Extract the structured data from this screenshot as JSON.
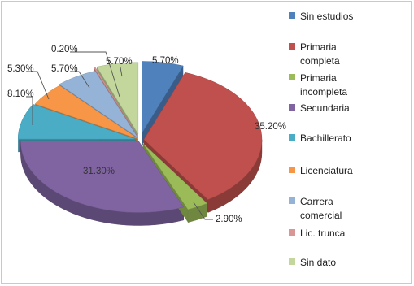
{
  "chart_data": {
    "type": "pie",
    "exploded": true,
    "three_d": true,
    "legend_position": "right",
    "categories": [
      "Sin estudios",
      "Primaria completa",
      "Primaria incompleta",
      "Secundaria",
      "Bachillerato",
      "Licenciatura",
      "Carrera comercial",
      "Lic. trunca",
      "Sin dato"
    ],
    "legend_lines": [
      [
        "Sin estudios"
      ],
      [
        "Primaria",
        "completa"
      ],
      [
        "Primaria",
        "incompleta"
      ],
      [
        "Secundaria"
      ],
      [
        "Bachillerato"
      ],
      [
        "Licenciatura"
      ],
      [
        "Carrera",
        "comercial"
      ],
      [
        "Lic. trunca"
      ],
      [
        "Sin dato"
      ]
    ],
    "values": [
      5.7,
      35.2,
      2.9,
      31.3,
      8.1,
      5.3,
      5.7,
      0.2,
      5.7
    ],
    "data_labels": [
      "5.70%",
      "35.20%",
      "2.90%",
      "31.30%",
      "8.10%",
      "5.30%",
      "5.70%",
      "0.20%",
      "5.70%"
    ],
    "colors": [
      "#4f81bd",
      "#c0504d",
      "#9bbb59",
      "#8064a2",
      "#4bacc6",
      "#f79646",
      "#95b3d7",
      "#d99694",
      "#c3d69b"
    ]
  }
}
